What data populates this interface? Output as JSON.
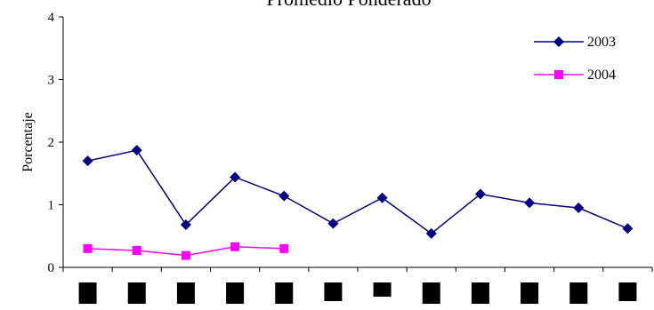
{
  "chart_data": {
    "type": "line",
    "title": "Promedio Ponderado",
    "ylabel": "Porcentaje",
    "xlabel": "",
    "ylim": [
      0,
      4
    ],
    "yticks": [
      "0",
      "1",
      "2",
      "3",
      "4"
    ],
    "categories_count": 12,
    "grid": false,
    "legend_position": "top-right",
    "series": [
      {
        "name": "2003",
        "color": "#000080",
        "marker": "diamond",
        "values": [
          1.7,
          1.87,
          0.68,
          1.44,
          1.14,
          0.7,
          1.11,
          0.54,
          1.17,
          1.03,
          0.95,
          0.62
        ]
      },
      {
        "name": "2004",
        "color": "#FF00FF",
        "marker": "square",
        "values": [
          0.3,
          0.27,
          0.19,
          0.33,
          0.3,
          null,
          null,
          null,
          null,
          null,
          null,
          null
        ]
      }
    ]
  }
}
